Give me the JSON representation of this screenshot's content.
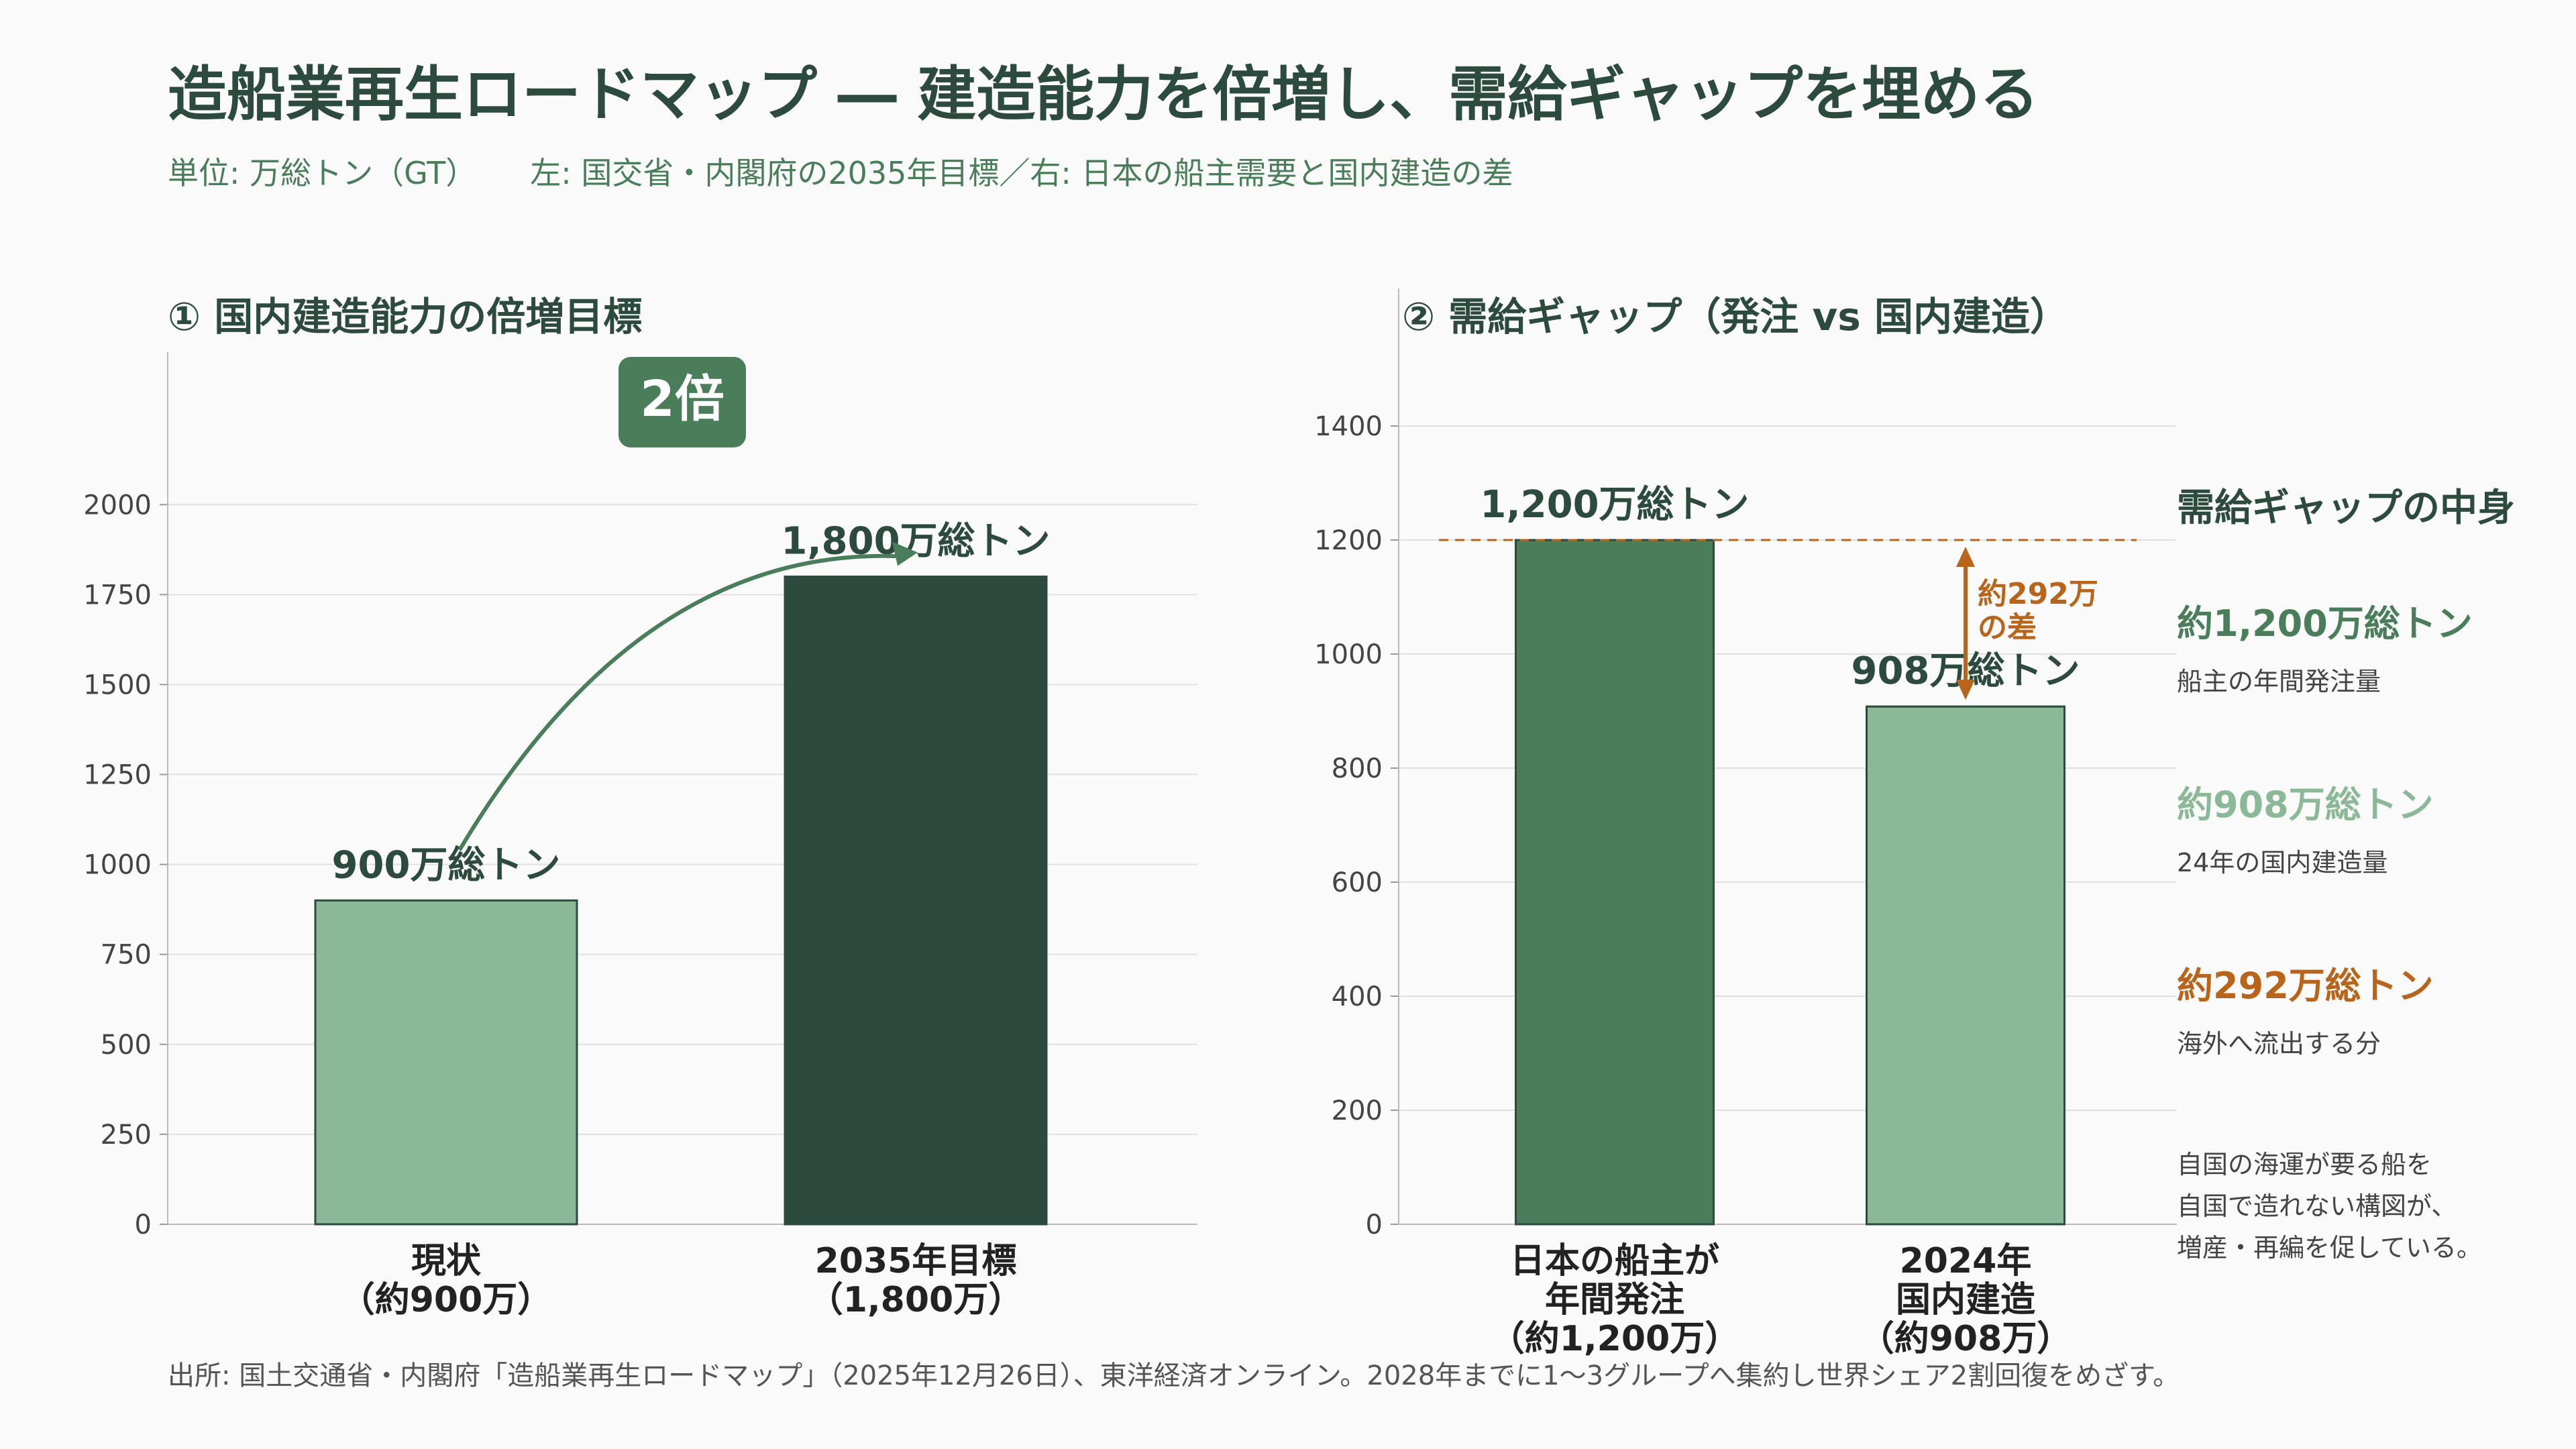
{
  "header": {
    "title": "造船業再生ロードマップ ― 建造能力を倍増し、需給ギャップを埋める",
    "unit": "単位: 万総トン（GT）",
    "description": "左: 国交省・内閣府の2035年目標／右: 日本の船主需要と国内建造の差"
  },
  "chart_data": [
    {
      "type": "bar",
      "title": "① 国内建造能力の倍増目標",
      "categories": [
        "現状\n（約900万）",
        "2035年目標\n（1,800万）"
      ],
      "values": [
        900,
        1800
      ],
      "data_labels": [
        "900万総トン",
        "1,800万総トン"
      ],
      "ylim": [
        0,
        2200
      ],
      "yticks": [
        0,
        250,
        500,
        750,
        1000,
        1250,
        1500,
        1750,
        2000
      ],
      "grid": true,
      "colors": [
        "#8bb896",
        "#2d4a3e"
      ],
      "annotation": {
        "label": "2倍",
        "from": "現状",
        "to": "2035年目標"
      }
    },
    {
      "type": "bar",
      "title": "② 需給ギャップ（発注 vs 国内建造）",
      "categories": [
        "日本の船主が\n年間発注\n（約1,200万）",
        "2024年\n国内建造\n（約908万）"
      ],
      "values": [
        1200,
        908
      ],
      "data_labels": [
        "1,200万総トン",
        "908万総トン"
      ],
      "ylim": [
        0,
        1500
      ],
      "yticks": [
        0,
        200,
        400,
        600,
        800,
        1000,
        1200,
        1400
      ],
      "grid": true,
      "colors": [
        "#4a7d5a",
        "#8bb896"
      ],
      "reference_line": 1200,
      "gap": {
        "value": 292,
        "label": "約292万\nの差"
      }
    }
  ],
  "side_panel": {
    "title": "需給ギャップの中身",
    "items": [
      {
        "value": "約1,200万総トン",
        "desc": "船主の年間発注量",
        "color": "#4a7d5a"
      },
      {
        "value": "約908万総トン",
        "desc": "24年の国内建造量",
        "color": "#8bb896"
      },
      {
        "value": "約292万総トン",
        "desc": "海外へ流出する分",
        "color": "#b8651b"
      }
    ],
    "note": "自国の海運が要る船を\n自国で造れない構図が、\n増産・再編を促している。"
  },
  "source": "出所: 国土交通省・内閣府「造船業再生ロードマップ」（2025年12月26日）、東洋経済オンライン。2028年までに1〜3グループへ集約し世界シェア2割回復をめざす。",
  "colors": {
    "accent": "#2d4a3e",
    "gap": "#b8651b",
    "badge": "#4a7d5a"
  }
}
